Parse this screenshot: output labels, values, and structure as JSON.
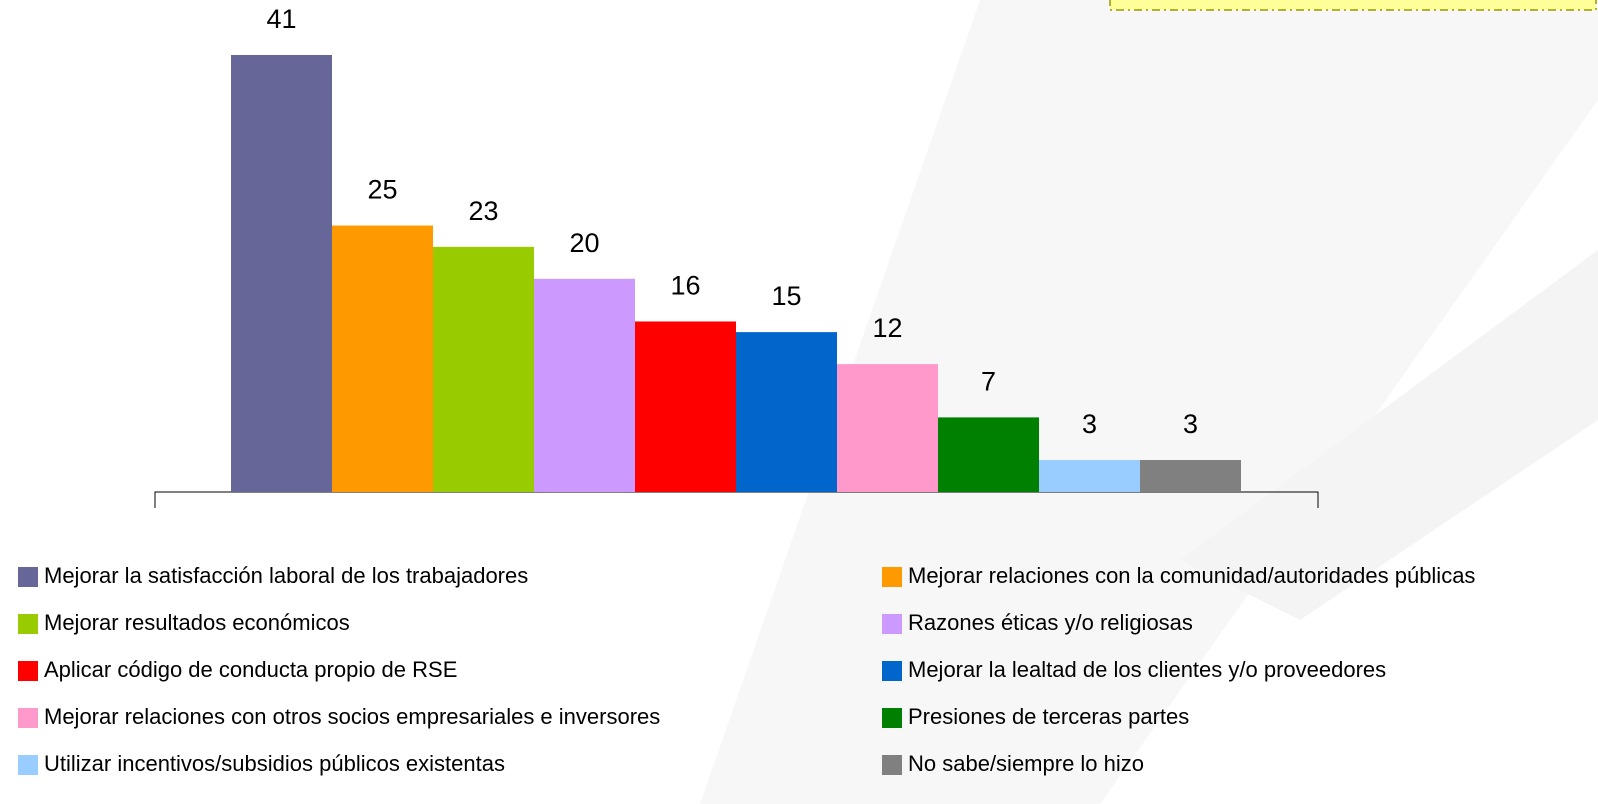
{
  "chart_data": {
    "type": "bar",
    "categories": [
      "Mejorar la satisfacción laboral de los trabajadores",
      "Mejorar relaciones con la comunidad/autoridades públicas",
      "Mejorar resultados económicos",
      "Razones éticas y/o religiosas",
      "Aplicar código de conducta propio de RSE",
      "Mejorar la lealtad de los clientes y/o proveedores",
      "Mejorar relaciones con otros socios empresariales e inversores",
      "Presiones de terceras partes",
      "Utilizar incentivos/subsidios públicos existentas",
      "No sabe/siempre lo hizo"
    ],
    "values": [
      41,
      25,
      23,
      20,
      16,
      15,
      12,
      7,
      3,
      3
    ],
    "colors": [
      "#666699",
      "#ff9900",
      "#99cc00",
      "#cc99ff",
      "#ff0000",
      "#0066cc",
      "#ff99cc",
      "#008000",
      "#99ccff",
      "#808080"
    ],
    "ylim": [
      0,
      41
    ]
  }
}
